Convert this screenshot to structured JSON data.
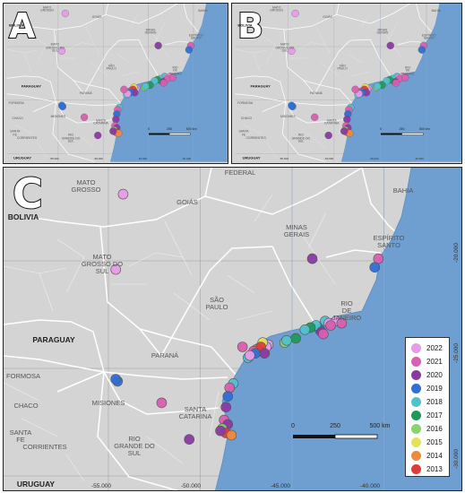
{
  "panels": {
    "a": "A",
    "b": "B",
    "c": "C"
  },
  "legend": [
    {
      "year": "2022",
      "color": "#e79be8"
    },
    {
      "year": "2021",
      "color": "#d95fb0"
    },
    {
      "year": "2020",
      "color": "#8a3aa3"
    },
    {
      "year": "2019",
      "color": "#2f6fd6"
    },
    {
      "year": "2018",
      "color": "#4ec3cc"
    },
    {
      "year": "2017",
      "color": "#1f9a5a"
    },
    {
      "year": "2016",
      "color": "#86d46a"
    },
    {
      "year": "2015",
      "color": "#e3e35a"
    },
    {
      "year": "2014",
      "color": "#ee8a3a"
    },
    {
      "year": "2013",
      "color": "#df3b3b"
    }
  ],
  "regions": [
    {
      "key": "mato_grosso",
      "label": "MATO\nGROSSO"
    },
    {
      "key": "goias",
      "label": "GOIÁS"
    },
    {
      "key": "federal",
      "label": "FEDERAL"
    },
    {
      "key": "bahia",
      "label": "BAHIA"
    },
    {
      "key": "minas_gerais",
      "label": "MINAS\nGERAIS"
    },
    {
      "key": "espirito_santo",
      "label": "ESPÍRITO\nSANTO"
    },
    {
      "key": "mato_grosso_do_sul",
      "label": "MATO\nGROSSO DO\nSUL"
    },
    {
      "key": "sao_paulo",
      "label": "SÃO\nPAULO"
    },
    {
      "key": "rio_de_janeiro",
      "label": "RIO\nDE\nJANEIRO"
    },
    {
      "key": "parana",
      "label": "PARANÁ"
    },
    {
      "key": "formosa",
      "label": "FORMOSA"
    },
    {
      "key": "misiones",
      "label": "MISIONES"
    },
    {
      "key": "chaco",
      "label": "CHACO"
    },
    {
      "key": "santa_catarina",
      "label": "SANTA\nCATARINA"
    },
    {
      "key": "santa_fe",
      "label": "SANTA\nFE"
    },
    {
      "key": "corrientes",
      "label": "CORRIENTES"
    },
    {
      "key": "rio_grande_do_sul",
      "label": "RIO\nGRANDE DO\nSUL"
    }
  ],
  "countries": [
    {
      "key": "bolivia",
      "label": "BOLIVIA"
    },
    {
      "key": "paraguay",
      "label": "PARAGUAY"
    },
    {
      "key": "uruguay",
      "label": "URUGUAY"
    }
  ],
  "ticks": {
    "lon": [
      "-55.000",
      "-50.000",
      "-45.000",
      "-40.000"
    ],
    "lat": [
      "-20.000",
      "-25.000",
      "-30.000"
    ]
  },
  "scalebar": {
    "labels": [
      "0",
      "250",
      "500 km"
    ]
  },
  "points": [
    {
      "lon": -54.2,
      "lat": -16.9,
      "year": "2022"
    },
    {
      "lon": -54.6,
      "lat": -20.4,
      "year": "2022"
    },
    {
      "lon": -43.9,
      "lat": -19.9,
      "year": "2020"
    },
    {
      "lon": -40.3,
      "lat": -19.9,
      "year": "2021"
    },
    {
      "lon": -40.5,
      "lat": -20.3,
      "year": "2019"
    },
    {
      "lon": -43.2,
      "lat": -22.8,
      "year": "2018"
    },
    {
      "lon": -43.0,
      "lat": -22.9,
      "year": "2022"
    },
    {
      "lon": -42.6,
      "lat": -22.8,
      "year": "2022"
    },
    {
      "lon": -42.9,
      "lat": -23.0,
      "year": "2021"
    },
    {
      "lon": -43.5,
      "lat": -23.2,
      "year": "2019"
    },
    {
      "lon": -43.7,
      "lat": -23.0,
      "year": "2018"
    },
    {
      "lon": -42.3,
      "lat": -22.9,
      "year": "2021"
    },
    {
      "lon": -43.4,
      "lat": -23.3,
      "year": "2020"
    },
    {
      "lon": -43.3,
      "lat": -23.4,
      "year": "2021"
    },
    {
      "lon": -44.0,
      "lat": -23.1,
      "year": "2017"
    },
    {
      "lon": -44.3,
      "lat": -23.2,
      "year": "2018"
    },
    {
      "lon": -44.8,
      "lat": -23.6,
      "year": "2017"
    },
    {
      "lon": -45.4,
      "lat": -23.8,
      "year": "2016"
    },
    {
      "lon": -45.3,
      "lat": -23.7,
      "year": "2018"
    },
    {
      "lon": -46.3,
      "lat": -23.9,
      "year": "2022"
    },
    {
      "lon": -46.4,
      "lat": -24.0,
      "year": "2022"
    },
    {
      "lon": -46.6,
      "lat": -23.8,
      "year": "2015"
    },
    {
      "lon": -46.9,
      "lat": -24.1,
      "year": "2014"
    },
    {
      "lon": -46.7,
      "lat": -24.0,
      "year": "2013"
    },
    {
      "lon": -47.1,
      "lat": -24.2,
      "year": "2021"
    },
    {
      "lon": -46.5,
      "lat": -24.3,
      "year": "2020"
    },
    {
      "lon": -47.0,
      "lat": -24.3,
      "year": "2019"
    },
    {
      "lon": -47.4,
      "lat": -24.5,
      "year": "2018"
    },
    {
      "lon": -47.3,
      "lat": -24.4,
      "year": "2022"
    },
    {
      "lon": -47.7,
      "lat": -24.0,
      "year": "2021"
    },
    {
      "lon": -48.2,
      "lat": -25.7,
      "year": "2018"
    },
    {
      "lon": -48.4,
      "lat": -25.9,
      "year": "2021"
    },
    {
      "lon": -48.5,
      "lat": -26.3,
      "year": "2019"
    },
    {
      "lon": -48.6,
      "lat": -26.8,
      "year": "2020"
    },
    {
      "lon": -48.7,
      "lat": -27.4,
      "year": "2021"
    },
    {
      "lon": -48.5,
      "lat": -27.6,
      "year": "2020"
    },
    {
      "lon": -48.8,
      "lat": -27.8,
      "year": "2016"
    },
    {
      "lon": -48.6,
      "lat": -28.0,
      "year": "2013"
    },
    {
      "lon": -48.3,
      "lat": -28.1,
      "year": "2014"
    },
    {
      "lon": -48.9,
      "lat": -27.9,
      "year": "2020"
    },
    {
      "lon": -52.1,
      "lat": -26.6,
      "year": "2021"
    },
    {
      "lon": -50.6,
      "lat": -28.3,
      "year": "2020"
    },
    {
      "lon": -54.5,
      "lat": -25.6,
      "year": "2019"
    },
    {
      "lon": -54.6,
      "lat": -25.5,
      "year": "2019"
    }
  ]
}
